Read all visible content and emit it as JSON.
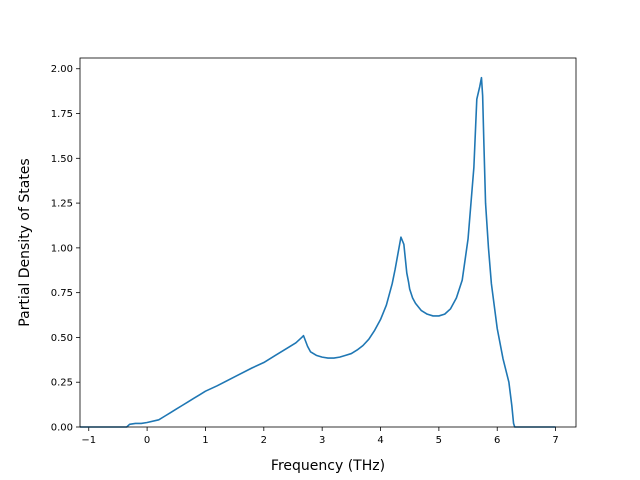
{
  "chart_data": {
    "type": "line",
    "title": "",
    "xlabel": "Frequency (THz)",
    "ylabel": "Partial Density of States",
    "xlim": [
      -1.15,
      7.35
    ],
    "ylim": [
      0.0,
      2.06
    ],
    "x_ticks": [
      -1,
      0,
      1,
      2,
      3,
      4,
      5,
      6,
      7
    ],
    "x_tick_labels": [
      "−1",
      "0",
      "1",
      "2",
      "3",
      "4",
      "5",
      "6",
      "7"
    ],
    "y_ticks": [
      0.0,
      0.25,
      0.5,
      0.75,
      1.0,
      1.25,
      1.5,
      1.75,
      2.0
    ],
    "y_tick_labels": [
      "0.00",
      "0.25",
      "0.50",
      "0.75",
      "1.00",
      "1.25",
      "1.50",
      "1.75",
      "2.00"
    ],
    "grid": false,
    "legend": "none",
    "series": [
      {
        "color": "#1f77b4",
        "x": [
          -1.15,
          -0.35,
          -0.3,
          -0.2,
          -0.1,
          0.0,
          0.2,
          0.3,
          0.4,
          0.5,
          0.6,
          0.7,
          0.8,
          0.9,
          1.0,
          1.2,
          1.5,
          1.8,
          2.0,
          2.2,
          2.4,
          2.55,
          2.65,
          2.68,
          2.75,
          2.8,
          2.9,
          3.0,
          3.1,
          3.2,
          3.3,
          3.4,
          3.5,
          3.6,
          3.7,
          3.8,
          3.9,
          4.0,
          4.1,
          4.2,
          4.25,
          4.3,
          4.35,
          4.4,
          4.45,
          4.48,
          4.5,
          4.55,
          4.6,
          4.7,
          4.8,
          4.9,
          5.0,
          5.1,
          5.2,
          5.3,
          5.4,
          5.5,
          5.6,
          5.65,
          5.7,
          5.73,
          5.75,
          5.77,
          5.8,
          5.85,
          5.9,
          6.0,
          6.1,
          6.2,
          6.25,
          6.28,
          6.3,
          7.0
        ],
        "y": [
          0.0,
          0.0,
          0.015,
          0.02,
          0.02,
          0.025,
          0.04,
          0.06,
          0.08,
          0.1,
          0.12,
          0.14,
          0.16,
          0.18,
          0.2,
          0.23,
          0.28,
          0.33,
          0.36,
          0.4,
          0.44,
          0.47,
          0.5,
          0.51,
          0.45,
          0.42,
          0.4,
          0.39,
          0.385,
          0.385,
          0.39,
          0.4,
          0.41,
          0.43,
          0.455,
          0.49,
          0.54,
          0.6,
          0.68,
          0.8,
          0.88,
          0.97,
          1.06,
          1.02,
          0.86,
          0.81,
          0.77,
          0.72,
          0.69,
          0.65,
          0.63,
          0.62,
          0.62,
          0.63,
          0.66,
          0.72,
          0.82,
          1.05,
          1.45,
          1.83,
          1.9,
          1.95,
          1.85,
          1.6,
          1.25,
          1.0,
          0.8,
          0.55,
          0.38,
          0.25,
          0.12,
          0.02,
          0.0,
          0.0
        ]
      }
    ]
  }
}
